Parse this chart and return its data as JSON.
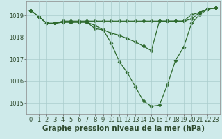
{
  "series": [
    {
      "x": [
        0,
        1,
        2,
        3,
        4,
        5,
        6,
        7,
        8,
        9,
        10,
        11,
        12,
        13,
        14,
        15,
        16,
        17,
        18,
        19,
        20,
        21,
        22,
        23
      ],
      "y": [
        1019.25,
        1018.95,
        1018.65,
        1018.65,
        1018.75,
        1018.75,
        1018.75,
        1018.75,
        1018.75,
        1018.75,
        1018.75,
        1018.75,
        1018.75,
        1018.75,
        1018.75,
        1018.75,
        1018.75,
        1018.75,
        1018.75,
        1018.75,
        1019.05,
        1019.15,
        1019.3,
        1019.35
      ]
    },
    {
      "x": [
        0,
        1,
        2,
        3,
        4,
        5,
        6,
        7,
        8,
        9,
        10,
        11,
        12,
        13,
        14,
        15,
        16,
        17,
        18,
        19,
        20,
        21,
        22,
        23
      ],
      "y": [
        1019.25,
        1018.95,
        1018.65,
        1018.65,
        1018.7,
        1018.7,
        1018.7,
        1018.7,
        1018.55,
        1018.35,
        1018.2,
        1018.1,
        1017.95,
        1017.8,
        1017.6,
        1017.4,
        1018.75,
        1018.75,
        1018.75,
        1018.75,
        1018.85,
        1019.15,
        1019.3,
        1019.35
      ]
    },
    {
      "x": [
        0,
        1,
        2,
        3,
        4,
        5,
        6,
        7,
        8,
        9,
        10,
        11,
        12,
        13,
        14,
        15,
        16,
        17,
        18,
        19,
        20,
        21,
        22,
        23
      ],
      "y": [
        1019.25,
        1018.95,
        1018.65,
        1018.65,
        1018.7,
        1018.7,
        1018.7,
        1018.7,
        1018.4,
        1018.35,
        1017.75,
        1016.9,
        1016.4,
        1015.75,
        1015.1,
        1014.85,
        1014.9,
        1015.85,
        1016.95,
        1017.55,
        1018.65,
        1019.05,
        1019.3,
        1019.35
      ]
    }
  ],
  "line_color": "#2d6a2d",
  "marker": "D",
  "markersize": 2.5,
  "linewidth": 0.9,
  "xlabel": "Graphe pression niveau de la mer (hPa)",
  "xlim": [
    -0.5,
    23.5
  ],
  "ylim": [
    1014.5,
    1019.65
  ],
  "yticks": [
    1015,
    1016,
    1017,
    1018,
    1019
  ],
  "xticks": [
    0,
    1,
    2,
    3,
    4,
    5,
    6,
    7,
    8,
    9,
    10,
    11,
    12,
    13,
    14,
    15,
    16,
    17,
    18,
    19,
    20,
    21,
    22,
    23
  ],
  "background_color": "#ceeaea",
  "grid_color": "#aacccc",
  "xlabel_fontsize": 7.5,
  "tick_fontsize": 6.0
}
